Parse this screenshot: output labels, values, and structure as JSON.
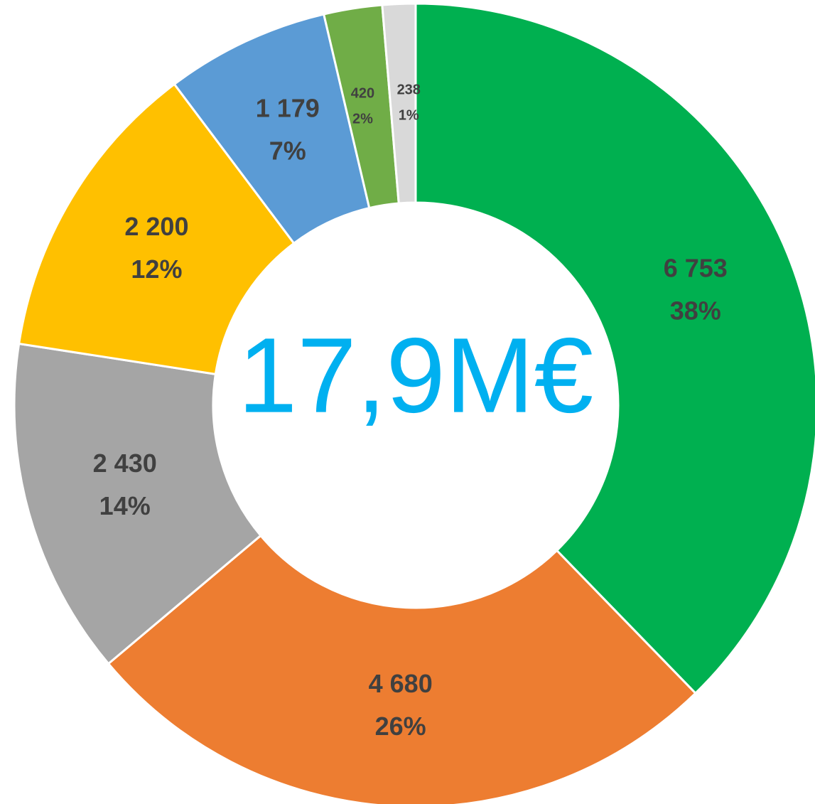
{
  "chart_data": {
    "type": "donut",
    "values": [
      6753,
      4680,
      2430,
      2200,
      1179,
      420,
      238
    ],
    "value_labels": [
      "6 753",
      "4 680",
      "2 430",
      "2 200",
      "1 179",
      "420",
      "238"
    ],
    "percent_labels": [
      "38%",
      "26%",
      "14%",
      "12%",
      "7%",
      "2%",
      "1%"
    ],
    "colors": [
      "#00b050",
      "#ed7d31",
      "#a5a5a5",
      "#ffc000",
      "#5b9bd5",
      "#70ad47",
      "#d9d9d9"
    ],
    "center_label": "17,9M€"
  }
}
